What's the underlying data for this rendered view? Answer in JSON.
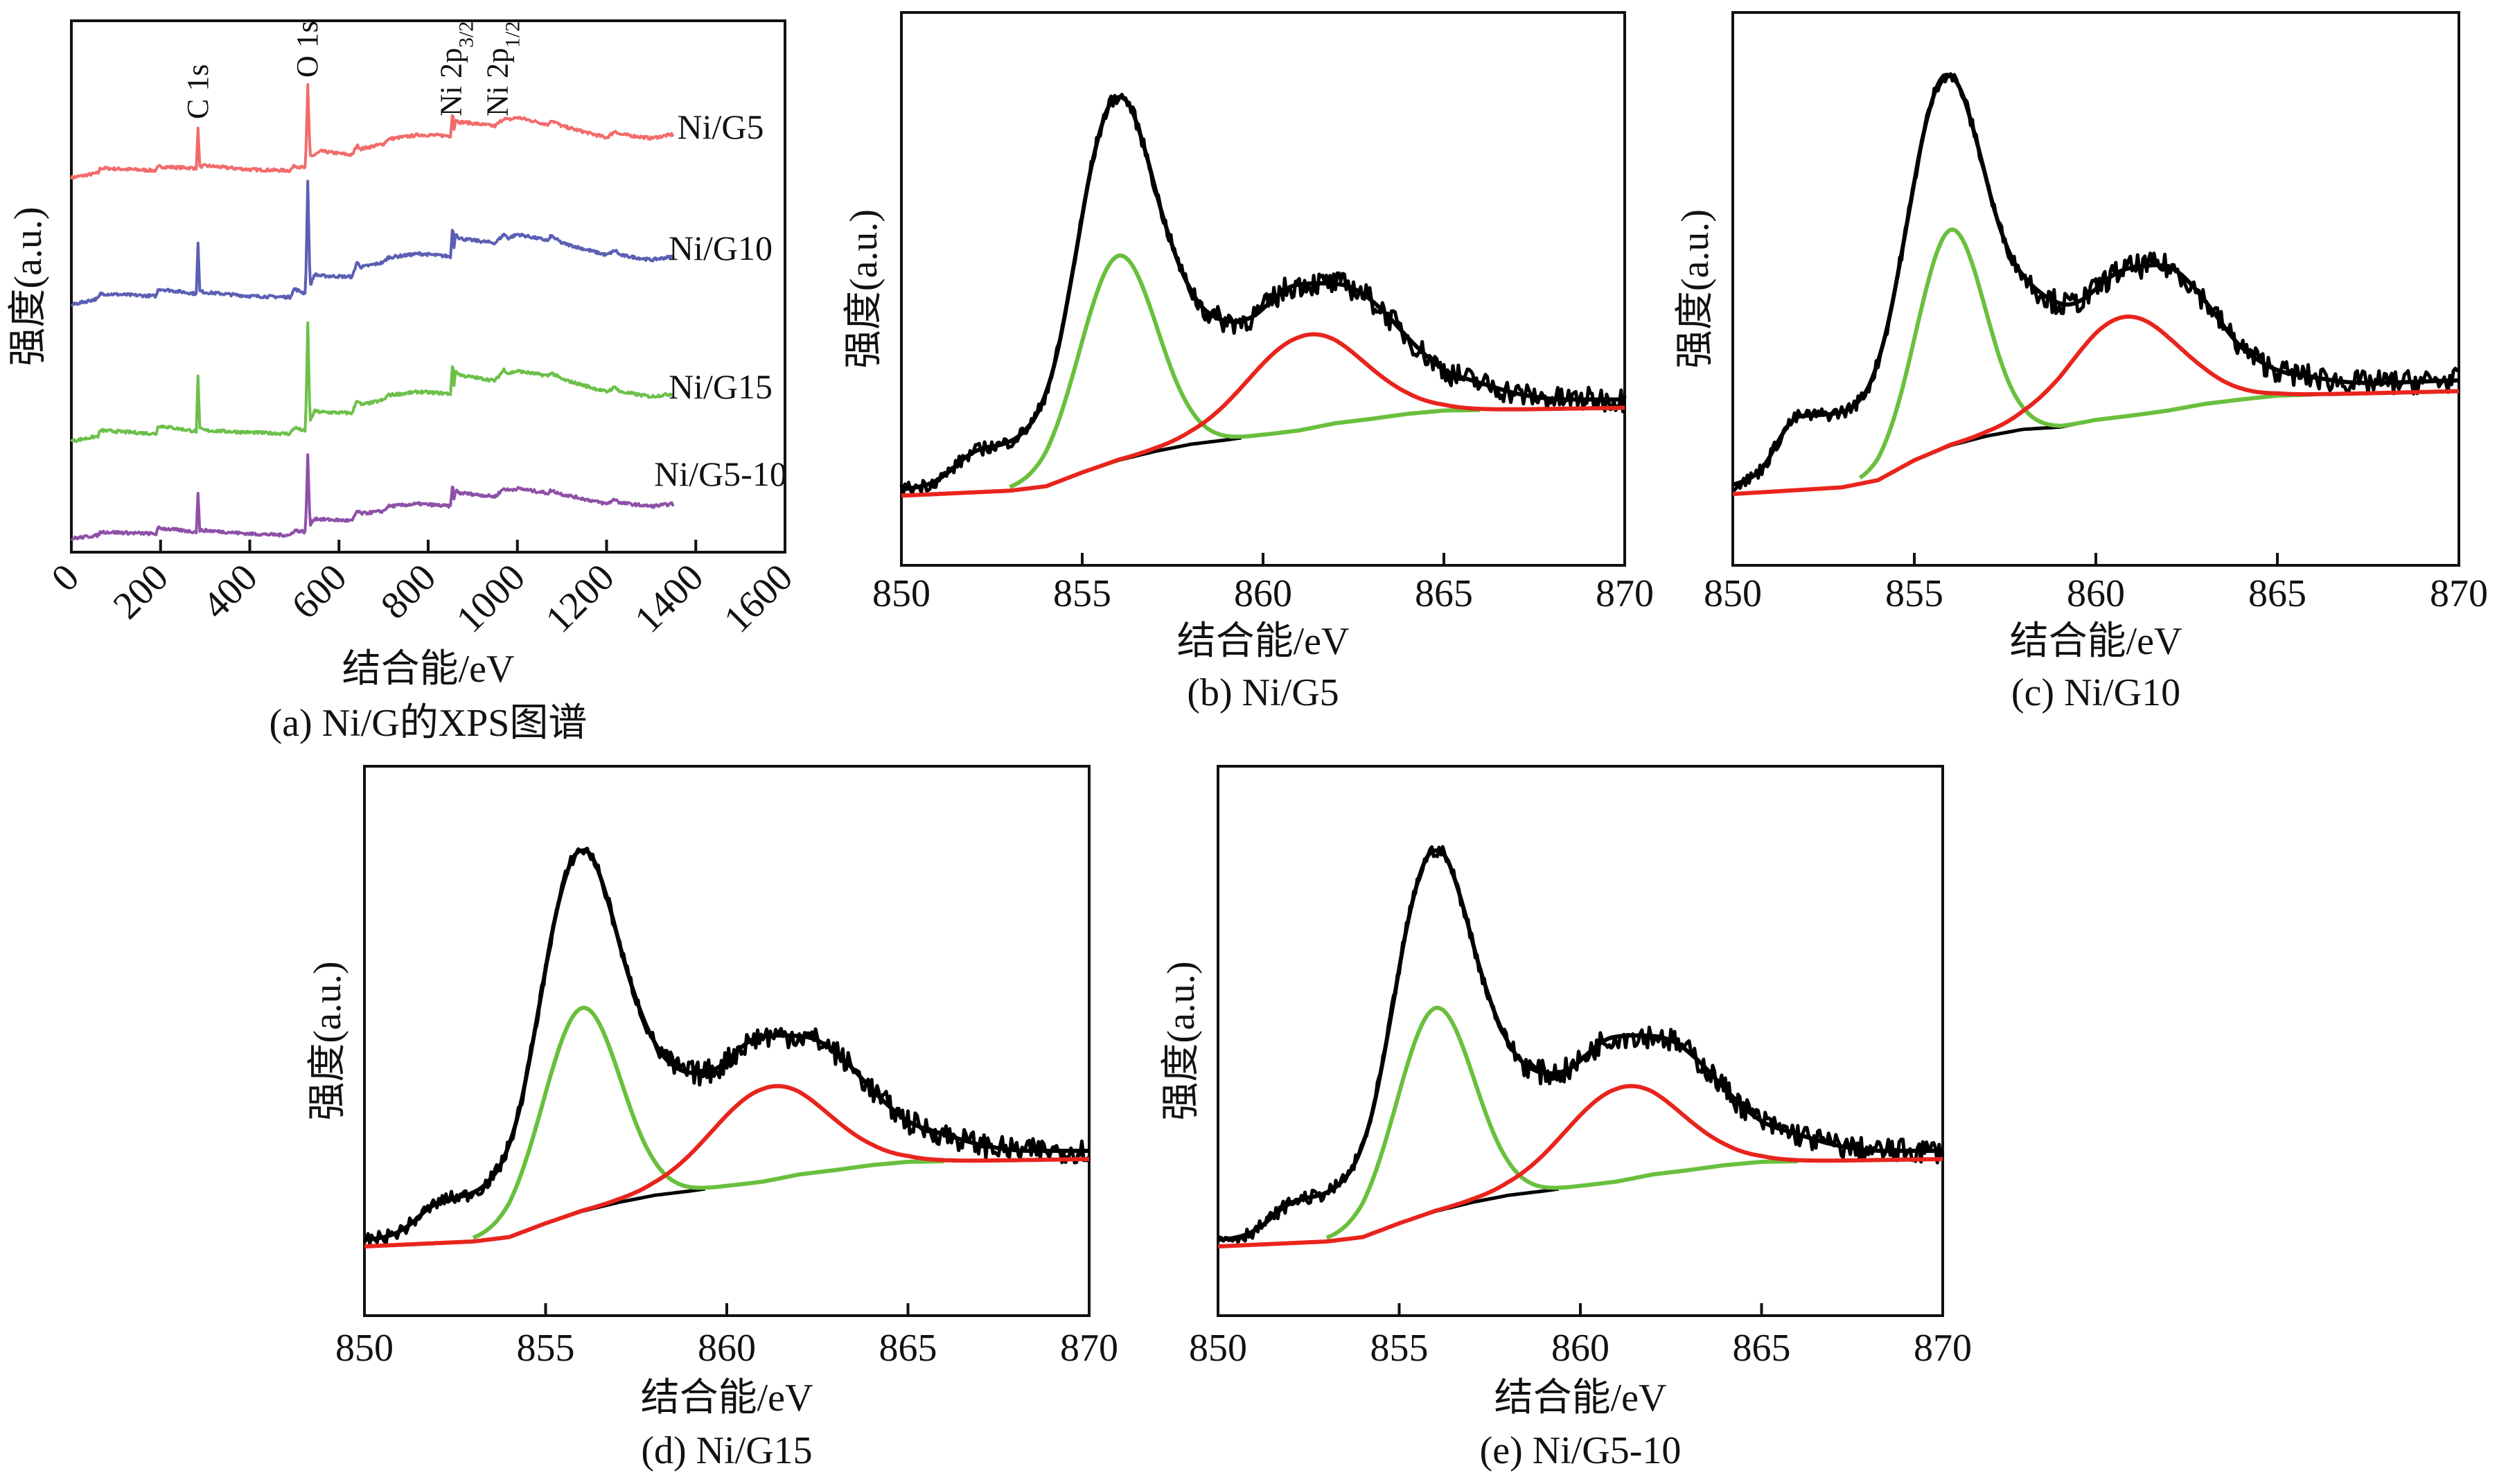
{
  "chart_data": [
    {
      "id": "a",
      "type": "line",
      "caption": "(a) Ni/G的XPS图谱",
      "xlabel": "结合能/eV",
      "ylabel": "强度(a.u.)",
      "xlim": [
        0,
        1600
      ],
      "xticks": [
        0,
        200,
        400,
        600,
        800,
        1000,
        1200,
        1400,
        1600
      ],
      "ylim": [
        0,
        110
      ],
      "grid": false,
      "x": [
        0,
        60,
        65,
        190,
        195,
        280,
        284,
        288,
        300,
        400,
        490,
        500,
        525,
        530,
        535,
        545,
        560,
        630,
        640,
        650,
        700,
        710,
        780,
        850,
        855,
        858,
        862,
        870,
        880,
        950,
        970,
        980,
        1000,
        1070,
        1075,
        1100,
        1200,
        1220,
        1230,
        1300,
        1350
      ],
      "series": [
        {
          "name": "Ni/G5",
          "color": "#f26b6b",
          "values": [
            77.5,
            78.5,
            79.5,
            79,
            79.8,
            79.5,
            87.8,
            79.8,
            80,
            79.2,
            79,
            80,
            79.5,
            96.8,
            82,
            82.2,
            83,
            82.2,
            84.2,
            83.5,
            84.5,
            85.5,
            86.4,
            86.2,
            91.4,
            87.5,
            89.5,
            89,
            89,
            88.2,
            89.8,
            89.5,
            90,
            88.5,
            89.5,
            88.2,
            85.8,
            87.2,
            86.5,
            85.7,
            86.5
          ]
        },
        {
          "name": "Ni/G10",
          "color": "#5b5fb3",
          "values": [
            51.2,
            52.5,
            53.5,
            53,
            54.5,
            53.5,
            64,
            54,
            53.8,
            53,
            52.8,
            54.5,
            53.5,
            76.8,
            55,
            57.5,
            57.2,
            57,
            60,
            59,
            60,
            61,
            61.8,
            61.2,
            68,
            63,
            66,
            65,
            64.8,
            64,
            65.8,
            65,
            65.8,
            64.5,
            65.5,
            64,
            61.5,
            62.5,
            61.5,
            60.5,
            61.2
          ]
        },
        {
          "name": "Ni/G15",
          "color": "#6cc04a",
          "values": [
            23,
            24,
            25.2,
            24.5,
            26.2,
            25,
            36.5,
            25.5,
            25.2,
            24.8,
            24.5,
            25.8,
            25,
            47.5,
            27,
            29.2,
            29,
            28.8,
            31.5,
            30.5,
            31.5,
            32.5,
            33.2,
            32.8,
            39.8,
            34.5,
            37.5,
            36.8,
            36.5,
            35.5,
            37.8,
            37,
            37.5,
            36.5,
            37.2,
            35.8,
            33.2,
            34.2,
            33.2,
            32.2,
            32.8
          ]
        },
        {
          "name": "Ni/G5-10",
          "color": "#8e50a8",
          "values": [
            2.8,
            3.5,
            4.2,
            3.8,
            5,
            4.2,
            12.2,
            4.5,
            4.5,
            3.8,
            3.5,
            4.5,
            4.2,
            20.2,
            5.5,
            7,
            6.8,
            6.5,
            8.5,
            8,
            8.5,
            9.5,
            10,
            9.5,
            14.5,
            11,
            12.8,
            12.2,
            12.2,
            11.5,
            13.2,
            12.8,
            13.2,
            12.2,
            12.8,
            12,
            10,
            11,
            10.2,
            9.5,
            10
          ]
        }
      ],
      "annotations": [
        {
          "text": "C 1s",
          "sub": "",
          "x": 284
        },
        {
          "text": "O 1s",
          "sub": "",
          "x": 530
        },
        {
          "text": "Ni 2p",
          "sub": "3/2",
          "x": 852
        },
        {
          "text": "Ni 2p",
          "sub": "1/2",
          "x": 875
        }
      ]
    },
    {
      "id": "b",
      "type": "line",
      "caption": "(b) Ni/G5",
      "xlabel": "结合能/eV",
      "ylabel": "强度(a.u.)",
      "xlim": [
        850,
        870
      ],
      "xticks": [
        850,
        855,
        860,
        865,
        870
      ],
      "ylim": [
        0,
        1
      ],
      "grid": false,
      "spectrum": {
        "color": "#000000",
        "x": [
          850,
          851,
          852,
          853,
          853.5,
          854,
          854.5,
          855,
          855.5,
          856,
          856.5,
          857,
          857.5,
          858,
          858.5,
          859,
          859.5,
          860,
          860.5,
          861,
          862,
          862.5,
          863,
          863.5,
          864,
          864.5,
          865,
          866,
          867,
          868,
          869,
          870
        ],
        "y": [
          0.135,
          0.15,
          0.21,
          0.22,
          0.245,
          0.295,
          0.43,
          0.64,
          0.81,
          0.87,
          0.82,
          0.68,
          0.57,
          0.49,
          0.45,
          0.44,
          0.44,
          0.46,
          0.5,
          0.51,
          0.51,
          0.505,
          0.48,
          0.45,
          0.41,
          0.38,
          0.35,
          0.33,
          0.31,
          0.3,
          0.3,
          0.3
        ]
      },
      "background": {
        "color": "#000000",
        "x": [
          850,
          853,
          854,
          855,
          856,
          857,
          858,
          859,
          860,
          861,
          862,
          863,
          864,
          865,
          866,
          870
        ],
        "y": [
          0.126,
          0.135,
          0.143,
          0.168,
          0.19,
          0.206,
          0.219,
          0.227,
          0.236,
          0.244,
          0.257,
          0.265,
          0.274,
          0.28,
          0.281,
          0.285
        ]
      },
      "components": [
        {
          "color": "#6abf3e",
          "center": 856.0,
          "amplitude": 0.37,
          "fwhm": 2.5,
          "range": [
            853,
            866
          ]
        },
        {
          "color": "#e8241d",
          "center": 861.2,
          "amplitude": 0.17,
          "fwhm": 3.8,
          "range": [
            850,
            870
          ]
        }
      ]
    },
    {
      "id": "c",
      "type": "line",
      "caption": "(c) Ni/G10",
      "xlabel": "结合能/eV",
      "ylabel": "强度(a.u.)",
      "xlim": [
        850,
        870
      ],
      "xticks": [
        850,
        855,
        860,
        865,
        870
      ],
      "ylim": [
        0,
        1
      ],
      "grid": false,
      "spectrum": {
        "color": "#000000",
        "x": [
          850,
          851,
          851.5,
          852,
          853,
          853.5,
          854,
          854.5,
          855,
          855.5,
          856,
          856.5,
          857,
          857.5,
          858,
          858.5,
          859,
          859.5,
          860,
          860.5,
          861,
          862,
          862.5,
          863,
          863.5,
          864,
          864.5,
          865,
          866,
          867,
          868,
          870
        ],
        "y": [
          0.137,
          0.18,
          0.27,
          0.27,
          0.275,
          0.29,
          0.35,
          0.5,
          0.7,
          0.87,
          0.91,
          0.83,
          0.69,
          0.57,
          0.52,
          0.49,
          0.47,
          0.47,
          0.5,
          0.53,
          0.54,
          0.545,
          0.52,
          0.48,
          0.435,
          0.39,
          0.37,
          0.35,
          0.34,
          0.33,
          0.33,
          0.335
        ]
      },
      "background": {
        "color": "#000000",
        "x": [
          850,
          853,
          854,
          855,
          856,
          857,
          858,
          859,
          860,
          861,
          862,
          863,
          864,
          865,
          866,
          870
        ],
        "y": [
          0.129,
          0.141,
          0.154,
          0.19,
          0.217,
          0.234,
          0.246,
          0.25,
          0.263,
          0.271,
          0.28,
          0.292,
          0.3,
          0.307,
          0.309,
          0.315
        ]
      },
      "components": [
        {
          "color": "#6abf3e",
          "center": 856.0,
          "amplitude": 0.39,
          "fwhm": 2.2,
          "range": [
            853.5,
            866
          ]
        },
        {
          "color": "#e8241d",
          "center": 860.8,
          "amplitude": 0.18,
          "fwhm": 3.6,
          "range": [
            850,
            870
          ]
        }
      ]
    },
    {
      "id": "d",
      "type": "line",
      "caption": "(d) Ni/G15",
      "xlabel": "结合能/eV",
      "ylabel": "强度(a.u.)",
      "xlim": [
        850,
        870
      ],
      "xticks": [
        850,
        855,
        860,
        865,
        870
      ],
      "ylim": [
        0,
        1
      ],
      "grid": false,
      "spectrum": {
        "color": "#000000",
        "x": [
          850,
          851,
          852,
          853,
          853.5,
          854,
          854.5,
          855,
          855.5,
          856,
          856.5,
          857,
          857.5,
          858,
          858.5,
          859,
          859.5,
          860,
          860.5,
          861,
          862,
          862.5,
          863,
          863.5,
          864,
          864.5,
          865,
          866,
          867,
          868,
          869,
          870
        ],
        "y": [
          0.135,
          0.15,
          0.21,
          0.22,
          0.245,
          0.295,
          0.43,
          0.64,
          0.81,
          0.87,
          0.82,
          0.68,
          0.57,
          0.49,
          0.45,
          0.44,
          0.44,
          0.46,
          0.5,
          0.51,
          0.51,
          0.505,
          0.48,
          0.45,
          0.41,
          0.38,
          0.35,
          0.33,
          0.31,
          0.3,
          0.3,
          0.3
        ]
      },
      "background": {
        "color": "#000000",
        "x": [
          850,
          853,
          854,
          855,
          856,
          857,
          858,
          859,
          860,
          861,
          862,
          863,
          864,
          865,
          866,
          870
        ],
        "y": [
          0.126,
          0.135,
          0.143,
          0.168,
          0.19,
          0.206,
          0.219,
          0.227,
          0.236,
          0.244,
          0.257,
          0.265,
          0.274,
          0.28,
          0.281,
          0.285
        ]
      },
      "components": [
        {
          "color": "#6abf3e",
          "center": 856.0,
          "amplitude": 0.37,
          "fwhm": 2.5,
          "range": [
            853,
            866
          ]
        },
        {
          "color": "#e8241d",
          "center": 861.2,
          "amplitude": 0.17,
          "fwhm": 3.8,
          "range": [
            850,
            870
          ]
        }
      ]
    },
    {
      "id": "e",
      "type": "line",
      "caption": "(e) Ni/G5-10",
      "xlabel": "结合能/eV",
      "ylabel": "强度(a.u.)",
      "xlim": [
        850,
        870
      ],
      "xticks": [
        850,
        855,
        860,
        865,
        870
      ],
      "ylim": [
        0,
        1
      ],
      "grid": false,
      "spectrum": {
        "color": "#000000",
        "x": [
          850,
          851,
          852,
          853,
          853.5,
          854,
          854.5,
          855,
          855.5,
          856,
          856.5,
          857,
          857.5,
          858,
          858.5,
          859,
          859.5,
          860,
          860.5,
          861,
          862,
          862.5,
          863,
          863.5,
          864,
          864.5,
          865,
          866,
          867,
          868,
          869,
          870
        ],
        "y": [
          0.135,
          0.15,
          0.21,
          0.22,
          0.245,
          0.295,
          0.43,
          0.64,
          0.81,
          0.87,
          0.82,
          0.68,
          0.57,
          0.49,
          0.45,
          0.44,
          0.44,
          0.46,
          0.5,
          0.51,
          0.51,
          0.505,
          0.48,
          0.45,
          0.41,
          0.38,
          0.35,
          0.33,
          0.31,
          0.3,
          0.3,
          0.3
        ]
      },
      "background": {
        "color": "#000000",
        "x": [
          850,
          853,
          854,
          855,
          856,
          857,
          858,
          859,
          860,
          861,
          862,
          863,
          864,
          865,
          866,
          870
        ],
        "y": [
          0.126,
          0.135,
          0.143,
          0.168,
          0.19,
          0.206,
          0.219,
          0.227,
          0.236,
          0.244,
          0.257,
          0.265,
          0.274,
          0.28,
          0.281,
          0.285
        ]
      },
      "components": [
        {
          "color": "#6abf3e",
          "center": 856.0,
          "amplitude": 0.37,
          "fwhm": 2.5,
          "range": [
            853,
            866
          ]
        },
        {
          "color": "#e8241d",
          "center": 861.2,
          "amplitude": 0.17,
          "fwhm": 3.8,
          "range": [
            850,
            870
          ]
        }
      ]
    }
  ]
}
